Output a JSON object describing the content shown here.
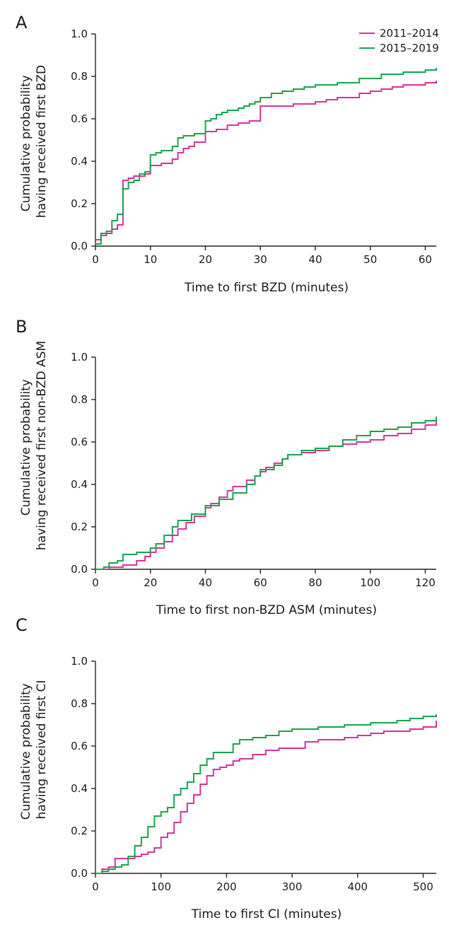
{
  "colors": {
    "s1": "#d6339a",
    "s2": "#1aa34a",
    "axis": "#222222"
  },
  "legend": [
    {
      "label": "2011–2014",
      "color": "#d6339a"
    },
    {
      "label": "2015–2019",
      "color": "#1aa34a"
    }
  ],
  "chart_data": [
    {
      "type": "line",
      "step": true,
      "panel_label": "A",
      "xlabel": "Time to first BZD (minutes)",
      "ylabel": [
        "Cumulative probability",
        "having received first BZD"
      ],
      "xlim": [
        0,
        62
      ],
      "ylim": [
        0,
        1.0
      ],
      "xticks": [
        "0",
        "10",
        "20",
        "30",
        "40",
        "50",
        "60"
      ],
      "yticks": [
        "0.0",
        "0.2",
        "0.4",
        "0.6",
        "0.8",
        "1.0"
      ],
      "legend_position": "top-right",
      "series": [
        {
          "name": "2011–2014",
          "color": "#d6339a",
          "x": [
            0,
            1,
            2,
            3,
            4,
            5,
            6,
            7,
            8,
            9,
            10,
            12,
            14,
            15,
            16,
            17,
            18,
            20,
            22,
            24,
            26,
            28,
            30,
            32,
            34,
            36,
            38,
            40,
            42,
            44,
            46,
            48,
            50,
            52,
            54,
            56,
            58,
            60,
            62
          ],
          "y": [
            0.03,
            0.05,
            0.06,
            0.08,
            0.1,
            0.31,
            0.32,
            0.33,
            0.33,
            0.34,
            0.38,
            0.39,
            0.41,
            0.44,
            0.46,
            0.47,
            0.49,
            0.54,
            0.55,
            0.57,
            0.58,
            0.59,
            0.66,
            0.66,
            0.66,
            0.67,
            0.67,
            0.68,
            0.69,
            0.7,
            0.7,
            0.72,
            0.73,
            0.74,
            0.75,
            0.76,
            0.76,
            0.77,
            0.78
          ]
        },
        {
          "name": "2015–2019",
          "color": "#1aa34a",
          "x": [
            0,
            1,
            2,
            3,
            4,
            5,
            6,
            7,
            8,
            9,
            10,
            11,
            12,
            14,
            15,
            16,
            18,
            20,
            21,
            22,
            23,
            24,
            25,
            26,
            27,
            28,
            29,
            30,
            32,
            34,
            36,
            38,
            40,
            44,
            48,
            52,
            56,
            60,
            62
          ],
          "y": [
            0.01,
            0.06,
            0.07,
            0.12,
            0.15,
            0.27,
            0.3,
            0.31,
            0.34,
            0.35,
            0.43,
            0.44,
            0.45,
            0.47,
            0.51,
            0.52,
            0.53,
            0.59,
            0.6,
            0.62,
            0.63,
            0.64,
            0.64,
            0.65,
            0.66,
            0.67,
            0.68,
            0.7,
            0.72,
            0.73,
            0.74,
            0.75,
            0.76,
            0.77,
            0.79,
            0.81,
            0.82,
            0.83,
            0.84
          ]
        }
      ]
    },
    {
      "type": "line",
      "step": true,
      "panel_label": "B",
      "xlabel": "Time to first non-BZD ASM (minutes)",
      "ylabel": [
        "Cumulative probability",
        "having received first non-BZD ASM"
      ],
      "xlim": [
        0,
        124
      ],
      "ylim": [
        0,
        1.0
      ],
      "xticks": [
        "0",
        "20",
        "40",
        "60",
        "80",
        "100",
        "120"
      ],
      "yticks": [
        "0.0",
        "0.2",
        "0.4",
        "0.6",
        "0.8",
        "1.0"
      ],
      "series": [
        {
          "name": "2011–2014",
          "color": "#d6339a",
          "x": [
            0,
            5,
            10,
            15,
            18,
            20,
            22,
            25,
            28,
            30,
            33,
            36,
            40,
            42,
            45,
            48,
            50,
            55,
            58,
            60,
            62,
            65,
            68,
            70,
            75,
            80,
            85,
            90,
            95,
            100,
            105,
            110,
            115,
            120,
            124
          ],
          "y": [
            0.0,
            0.01,
            0.02,
            0.04,
            0.06,
            0.08,
            0.1,
            0.13,
            0.16,
            0.19,
            0.22,
            0.25,
            0.29,
            0.31,
            0.34,
            0.37,
            0.39,
            0.42,
            0.44,
            0.46,
            0.48,
            0.5,
            0.52,
            0.54,
            0.55,
            0.56,
            0.58,
            0.59,
            0.6,
            0.61,
            0.63,
            0.64,
            0.66,
            0.68,
            0.7
          ]
        },
        {
          "name": "2015–2019",
          "color": "#1aa34a",
          "x": [
            0,
            3,
            5,
            8,
            10,
            15,
            20,
            22,
            25,
            28,
            30,
            35,
            40,
            45,
            50,
            55,
            58,
            60,
            65,
            68,
            70,
            75,
            80,
            85,
            90,
            95,
            100,
            105,
            110,
            115,
            120,
            124
          ],
          "y": [
            0.0,
            0.01,
            0.03,
            0.04,
            0.07,
            0.08,
            0.1,
            0.12,
            0.16,
            0.2,
            0.23,
            0.26,
            0.3,
            0.33,
            0.36,
            0.4,
            0.44,
            0.47,
            0.49,
            0.52,
            0.54,
            0.56,
            0.57,
            0.58,
            0.61,
            0.63,
            0.65,
            0.66,
            0.67,
            0.69,
            0.7,
            0.72
          ]
        }
      ]
    },
    {
      "type": "line",
      "step": true,
      "panel_label": "C",
      "xlabel": "Time to first CI (minutes)",
      "ylabel": [
        "Cumulative probability",
        "having received first CI"
      ],
      "xlim": [
        0,
        520
      ],
      "ylim": [
        0,
        1.0
      ],
      "xticks": [
        "0",
        "100",
        "200",
        "300",
        "400",
        "500"
      ],
      "yticks": [
        "0.0",
        "0.2",
        "0.4",
        "0.6",
        "0.8",
        "1.0"
      ],
      "series": [
        {
          "name": "2011–2014",
          "color": "#d6339a",
          "x": [
            0,
            10,
            20,
            30,
            40,
            50,
            60,
            70,
            80,
            90,
            100,
            110,
            120,
            130,
            140,
            150,
            160,
            170,
            180,
            190,
            200,
            210,
            220,
            240,
            260,
            280,
            300,
            320,
            340,
            360,
            380,
            400,
            420,
            440,
            460,
            480,
            500,
            520
          ],
          "y": [
            0.0,
            0.02,
            0.03,
            0.07,
            0.07,
            0.07,
            0.08,
            0.09,
            0.1,
            0.12,
            0.17,
            0.19,
            0.24,
            0.29,
            0.33,
            0.37,
            0.42,
            0.46,
            0.49,
            0.5,
            0.51,
            0.53,
            0.54,
            0.56,
            0.58,
            0.59,
            0.59,
            0.62,
            0.63,
            0.63,
            0.64,
            0.65,
            0.66,
            0.67,
            0.67,
            0.68,
            0.69,
            0.72
          ]
        },
        {
          "name": "2015–2019",
          "color": "#1aa34a",
          "x": [
            0,
            10,
            20,
            30,
            40,
            50,
            60,
            70,
            80,
            90,
            100,
            110,
            120,
            130,
            140,
            150,
            160,
            170,
            180,
            190,
            200,
            210,
            220,
            240,
            260,
            280,
            300,
            340,
            380,
            420,
            460,
            480,
            500,
            520
          ],
          "y": [
            0.0,
            0.01,
            0.02,
            0.03,
            0.04,
            0.08,
            0.13,
            0.17,
            0.22,
            0.27,
            0.29,
            0.31,
            0.37,
            0.4,
            0.43,
            0.47,
            0.51,
            0.54,
            0.57,
            0.57,
            0.57,
            0.61,
            0.63,
            0.64,
            0.65,
            0.67,
            0.68,
            0.69,
            0.7,
            0.71,
            0.72,
            0.73,
            0.74,
            0.75
          ]
        }
      ]
    }
  ]
}
